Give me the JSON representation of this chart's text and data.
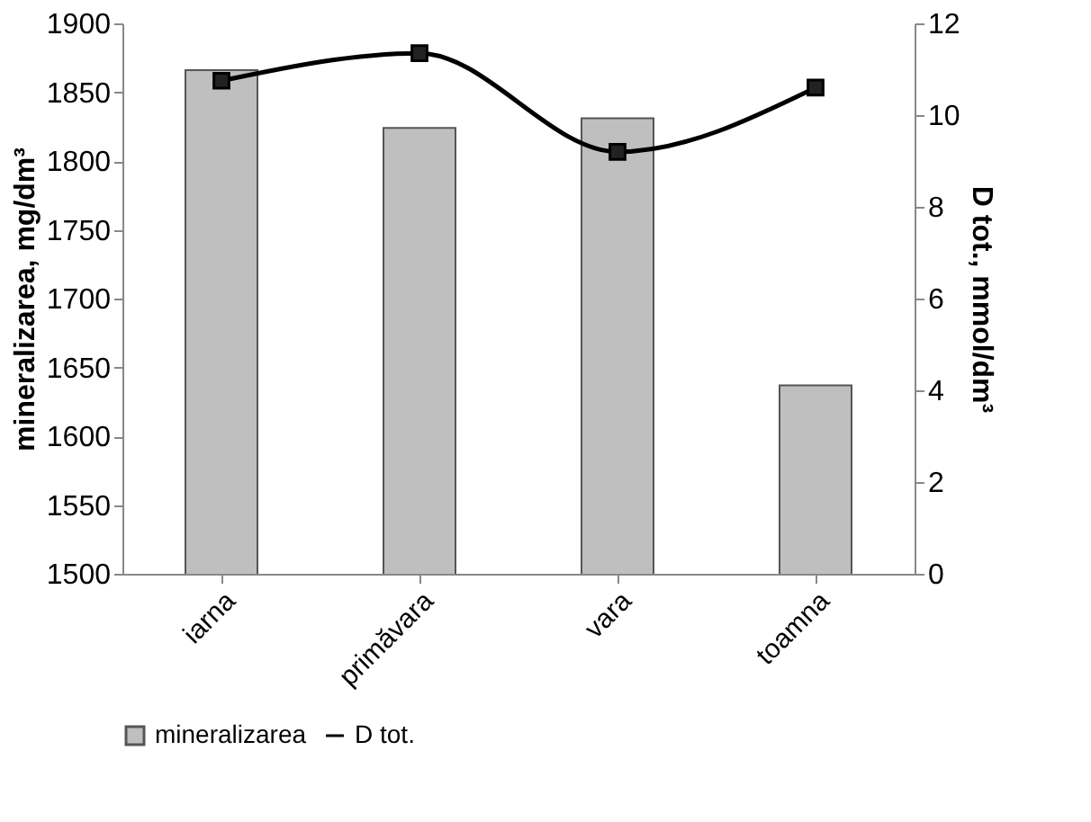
{
  "chart_data": {
    "type": "bar",
    "categories": [
      "iarna",
      "primăvara",
      "vara",
      "toamna"
    ],
    "ylabel": "mineralizarea, mg/dm³",
    "y2label": "D tot., mmol/dm³",
    "ylim": [
      1500,
      1900
    ],
    "yticks": [
      1500,
      1550,
      1600,
      1650,
      1700,
      1750,
      1800,
      1850,
      1900
    ],
    "y2lim": [
      0,
      12
    ],
    "y2ticks": [
      0,
      2,
      4,
      6,
      8,
      10,
      12
    ],
    "series": [
      {
        "name": "mineralizarea",
        "color": "#bfbfbf",
        "values": [
          1866,
          1824,
          1831,
          1637
        ]
      },
      {
        "name": "D tot.",
        "type": "line",
        "axis": "y2",
        "color": "#000000",
        "marker": "square",
        "values": [
          10.75,
          11.35,
          9.2,
          10.6
        ]
      }
    ],
    "legend": "bottom",
    "grid": false
  }
}
